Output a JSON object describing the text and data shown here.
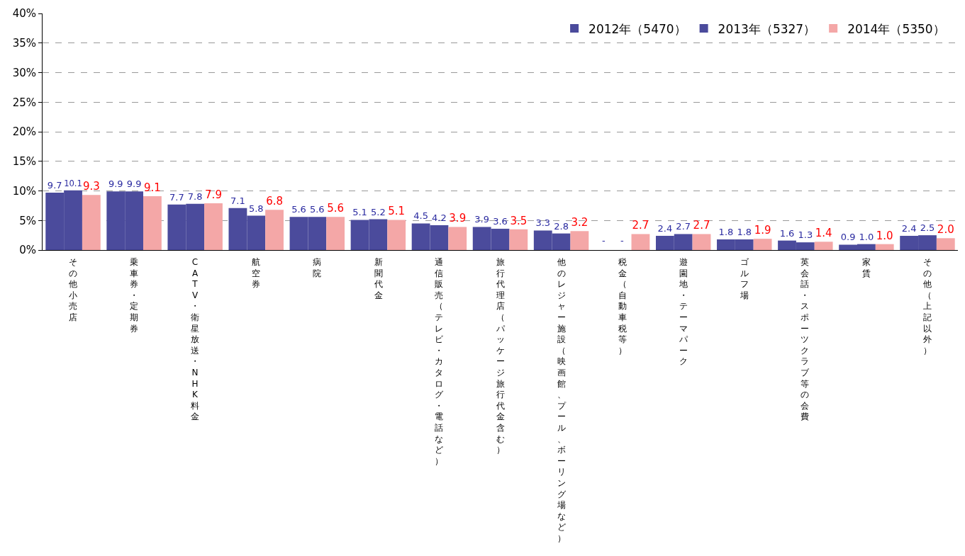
{
  "chart_data": {
    "type": "bar",
    "categories": [
      "その他小売店",
      "乗車券・定期券",
      "CATV・衛星放送・NHK料金",
      "航空券",
      "病院",
      "新聞代金",
      "通信販売（テレビ・カタログ・電話など）",
      "旅行代理店（パッケージ旅行代金含む）",
      "他のレジャー施設（映画館、プール、ボーリング場など）",
      "税金（自動車税等）",
      "遊園地・テーマパーク",
      "ゴルフ場",
      "英会話・スポーツクラブ等の会費",
      "家賃",
      "その他（上記以外）"
    ],
    "series": [
      {
        "name": "2012年（5470）",
        "color": "#4b4b9c",
        "values": [
          9.7,
          9.9,
          7.7,
          7.1,
          5.6,
          5.1,
          4.5,
          3.9,
          3.3,
          null,
          2.4,
          1.8,
          1.6,
          0.9,
          2.4
        ],
        "value_labels": [
          "9.7",
          "9.9",
          "7.7",
          "7.1",
          "5.6",
          "5.1",
          "4.5",
          "3.9",
          "3.3",
          "-",
          "2.4",
          "1.8",
          "1.6",
          "0.9",
          "2.4"
        ]
      },
      {
        "name": "2013年（5327）",
        "color": "#4b4b9c",
        "values": [
          10.1,
          9.9,
          7.8,
          5.8,
          5.6,
          5.2,
          4.2,
          3.6,
          2.8,
          null,
          2.7,
          1.8,
          1.3,
          1.0,
          2.5
        ],
        "value_labels": [
          "10.1",
          "9.9",
          "7.8",
          "5.8",
          "5.6",
          "5.2",
          "4.2",
          "3.6",
          "2.8",
          "-",
          "2.7",
          "1.8",
          "1.3",
          "1.0",
          "2.5"
        ]
      },
      {
        "name": "2014年（5350）",
        "color": "#f4a7a7",
        "values": [
          9.3,
          9.1,
          7.9,
          6.8,
          5.6,
          5.1,
          3.9,
          3.5,
          3.2,
          2.7,
          2.7,
          1.9,
          1.4,
          1.0,
          2.0
        ],
        "value_labels": [
          "9.3",
          "9.1",
          "7.9",
          "6.8",
          "5.6",
          "5.1",
          "3.9",
          "3.5",
          "3.2",
          "2.7",
          "2.7",
          "1.9",
          "1.4",
          "1.0",
          "2.0"
        ]
      }
    ],
    "ylim": [
      0,
      40
    ],
    "yticks": [
      {
        "value": 0,
        "label": "0%"
      },
      {
        "value": 5,
        "label": "5%"
      },
      {
        "value": 10,
        "label": "10%"
      },
      {
        "value": 15,
        "label": "15%"
      },
      {
        "value": 20,
        "label": "20%"
      },
      {
        "value": 25,
        "label": "25%"
      },
      {
        "value": 30,
        "label": "30%"
      },
      {
        "value": 35,
        "label": "35%"
      },
      {
        "value": 40,
        "label": "40%"
      }
    ],
    "grid": "y",
    "legend": "top right"
  }
}
